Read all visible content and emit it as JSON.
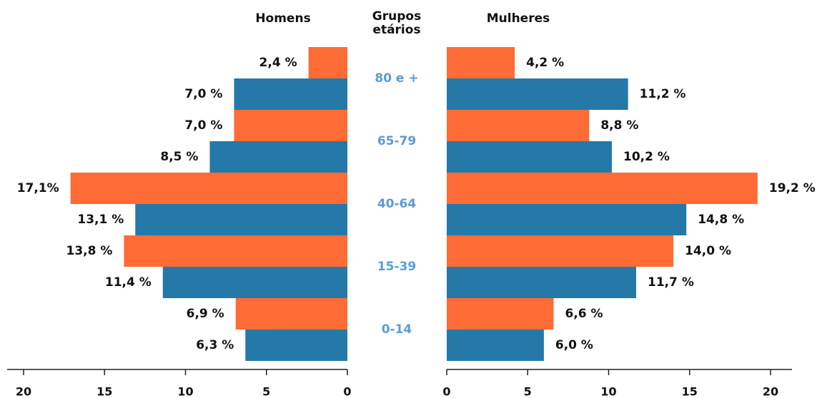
{
  "chart_data": {
    "type": "pyramid",
    "category_title": "Grupos etários",
    "category_color": "#5b9bd5",
    "categories": [
      "80 e +",
      "65-79",
      "40-64",
      "15-39",
      "0-14"
    ],
    "panels": [
      {
        "title": "Homens",
        "side": "left",
        "xlim": [
          0,
          20
        ],
        "xticks": [
          0,
          5,
          10,
          15,
          20
        ],
        "series": [
          {
            "color": "#ff6b35",
            "values": [
              2.4,
              7.0,
              17.1,
              13.8,
              6.9
            ],
            "value_labels": [
              "2,4 %",
              "7,0 %",
              "17,1%",
              "13,8 %",
              "6,9 %"
            ]
          },
          {
            "color": "#2479a8",
            "values": [
              7.0,
              8.5,
              13.1,
              11.4,
              6.3
            ],
            "value_labels": [
              "7,0 %",
              "8,5 %",
              "13,1 %",
              "11,4 %",
              "6,3 %"
            ]
          }
        ]
      },
      {
        "title": "Mulheres",
        "side": "right",
        "xlim": [
          0,
          20
        ],
        "xticks": [
          0,
          5,
          10,
          15,
          20
        ],
        "series": [
          {
            "color": "#ff6b35",
            "values": [
              4.2,
              8.8,
              19.2,
              14.0,
              6.6
            ],
            "value_labels": [
              "4,2 %",
              "8,8 %",
              "19,2 %",
              "14,0 %",
              "6,6 %"
            ]
          },
          {
            "color": "#2479a8",
            "values": [
              11.2,
              10.2,
              14.8,
              11.7,
              6.0
            ],
            "value_labels": [
              "11,2 %",
              "10,2 %",
              "14,8 %",
              "11,7 %",
              "6,0 %"
            ]
          }
        ]
      }
    ]
  }
}
